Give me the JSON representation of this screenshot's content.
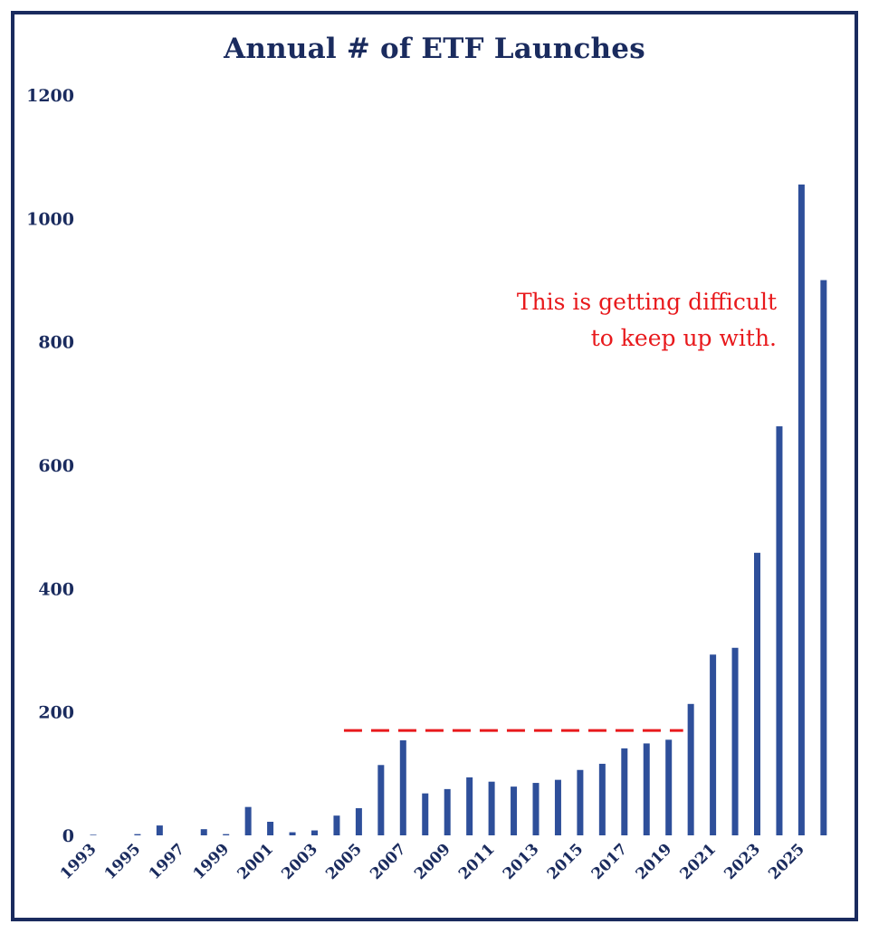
{
  "chart_data": {
    "type": "bar",
    "title": "Annual # of ETF Launches",
    "xlabel": "",
    "ylabel": "",
    "ylim": [
      0,
      1200
    ],
    "yticks": [
      "0",
      "200",
      "400",
      "600",
      "800",
      "1000",
      "1200"
    ],
    "xtick_labels": [
      "1993",
      "1995",
      "1997",
      "1999",
      "2001",
      "2003",
      "2005",
      "2007",
      "2009",
      "2011",
      "2013",
      "2015",
      "2017",
      "2019",
      "2021",
      "2023",
      "2025"
    ],
    "categories": [
      "1993",
      "1994",
      "1995",
      "1996",
      "1997",
      "1998",
      "1999",
      "2000",
      "2001",
      "2002",
      "2003",
      "2004",
      "2005",
      "2006",
      "2007",
      "2008",
      "2009",
      "2010",
      "2011",
      "2012",
      "2013",
      "2014",
      "2015",
      "2016",
      "2017",
      "2018",
      "2019",
      "2020",
      "2021",
      "2022",
      "2023",
      "2024",
      "2025",
      "2026"
    ],
    "values": [
      1,
      0,
      2,
      16,
      0,
      10,
      2,
      46,
      22,
      5,
      8,
      32,
      44,
      114,
      154,
      68,
      75,
      94,
      87,
      79,
      85,
      90,
      106,
      116,
      141,
      149,
      155,
      213,
      293,
      304,
      458,
      663,
      1055,
      900
    ],
    "bar_color": "#2e4f9a",
    "grid": false,
    "reference_line": {
      "y": 170,
      "x_start": "2004",
      "x_end": "2019",
      "style": "dashed",
      "color": "#e8191c"
    },
    "annotation": {
      "lines": [
        "This is getting difficult",
        "to keep up with."
      ],
      "color": "#e8191c"
    }
  }
}
